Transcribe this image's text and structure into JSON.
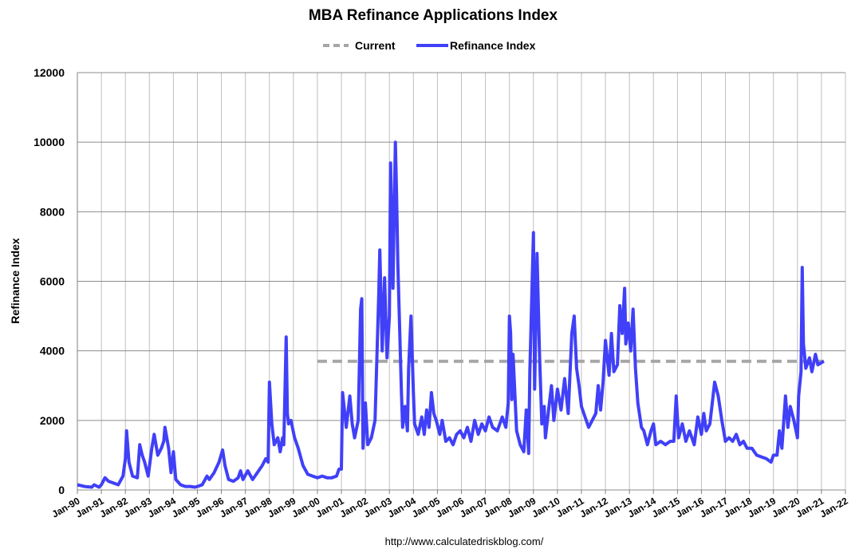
{
  "chart_data": {
    "type": "line",
    "title": "MBA Refinance Applications Index",
    "xlabel": "",
    "ylabel": "Refinance Index",
    "source": "http://www.calculatedriskblog.com/",
    "ylim": [
      0,
      12000
    ],
    "xlim": [
      1990,
      2022
    ],
    "grid": true,
    "legend_position": "top-center",
    "y_ticks": [
      0,
      2000,
      4000,
      6000,
      8000,
      10000,
      12000
    ],
    "x_ticks": [
      "Jan-90",
      "Jan-91",
      "Jan-92",
      "Jan-93",
      "Jan-94",
      "Jan-95",
      "Jan-96",
      "Jan-97",
      "Jan-98",
      "Jan-99",
      "Jan-00",
      "Jan-01",
      "Jan-02",
      "Jan-03",
      "Jan-04",
      "Jan-05",
      "Jan-06",
      "Jan-07",
      "Jan-08",
      "Jan-09",
      "Jan-10",
      "Jan-11",
      "Jan-12",
      "Jan-13",
      "Jan-14",
      "Jan-15",
      "Jan-16",
      "Jan-17",
      "Jan-18",
      "Jan-19",
      "Jan-20",
      "Jan-21",
      "Jan-22"
    ],
    "colors": {
      "refinance": "#4040f8",
      "current": "#a6a6a6"
    },
    "series": [
      {
        "name": "Current",
        "style": "dashed",
        "x": [
          2000.0,
          2021.1
        ],
        "y": [
          3700,
          3700
        ]
      },
      {
        "name": "Refinance Index",
        "style": "solid",
        "x": [
          1990.0,
          1990.3,
          1990.6,
          1990.7,
          1990.9,
          1991.0,
          1991.15,
          1991.3,
          1991.5,
          1991.7,
          1991.9,
          1992.0,
          1992.05,
          1992.15,
          1992.3,
          1992.5,
          1992.6,
          1992.7,
          1992.8,
          1992.95,
          1993.1,
          1993.2,
          1993.35,
          1993.5,
          1993.6,
          1993.65,
          1993.8,
          1993.9,
          1994.0,
          1994.1,
          1994.3,
          1994.5,
          1994.7,
          1994.9,
          1995.0,
          1995.2,
          1995.4,
          1995.5,
          1995.7,
          1995.9,
          1996.05,
          1996.15,
          1996.3,
          1996.5,
          1996.7,
          1996.8,
          1996.9,
          1997.1,
          1997.3,
          1997.5,
          1997.7,
          1997.85,
          1997.95,
          1998.0,
          1998.1,
          1998.2,
          1998.35,
          1998.45,
          1998.55,
          1998.6,
          1998.7,
          1998.75,
          1998.8,
          1998.9,
          1999.05,
          1999.2,
          1999.4,
          1999.6,
          1999.8,
          2000.0,
          2000.2,
          2000.4,
          2000.6,
          2000.8,
          2000.9,
          2001.0,
          2001.05,
          2001.2,
          2001.35,
          2001.45,
          2001.55,
          2001.7,
          2001.8,
          2001.85,
          2001.9,
          2002.0,
          2002.1,
          2002.25,
          2002.4,
          2002.55,
          2002.6,
          2002.7,
          2002.8,
          2002.9,
          2003.0,
          2003.05,
          2003.15,
          2003.2,
          2003.25,
          2003.3,
          2003.35,
          2003.5,
          2003.55,
          2003.65,
          2003.75,
          2003.8,
          2003.9,
          2004.0,
          2004.05,
          2004.2,
          2004.35,
          2004.45,
          2004.55,
          2004.65,
          2004.75,
          2004.85,
          2004.95,
          2005.1,
          2005.2,
          2005.35,
          2005.5,
          2005.65,
          2005.8,
          2005.95,
          2006.1,
          2006.25,
          2006.4,
          2006.55,
          2006.7,
          2006.85,
          2007.0,
          2007.15,
          2007.3,
          2007.5,
          2007.7,
          2007.85,
          2007.95,
          2008.0,
          2008.05,
          2008.1,
          2008.15,
          2008.3,
          2008.45,
          2008.6,
          2008.7,
          2008.8,
          2008.85,
          2009.0,
          2009.05,
          2009.15,
          2009.25,
          2009.35,
          2009.45,
          2009.5,
          2009.65,
          2009.75,
          2009.85,
          2010.0,
          2010.15,
          2010.3,
          2010.45,
          2010.6,
          2010.7,
          2010.8,
          2010.9,
          2011.0,
          2011.15,
          2011.3,
          2011.45,
          2011.6,
          2011.7,
          2011.8,
          2011.9,
          2012.0,
          2012.15,
          2012.25,
          2012.35,
          2012.5,
          2012.6,
          2012.7,
          2012.8,
          2012.85,
          2012.95,
          2013.05,
          2013.15,
          2013.25,
          2013.35,
          2013.5,
          2013.6,
          2013.75,
          2013.9,
          2014.0,
          2014.1,
          2014.3,
          2014.5,
          2014.7,
          2014.85,
          2014.95,
          2015.05,
          2015.2,
          2015.35,
          2015.5,
          2015.7,
          2015.85,
          2016.0,
          2016.1,
          2016.2,
          2016.35,
          2016.55,
          2016.7,
          2016.85,
          2017.0,
          2017.15,
          2017.3,
          2017.45,
          2017.6,
          2017.75,
          2017.9,
          2018.1,
          2018.3,
          2018.5,
          2018.7,
          2018.9,
          2019.0,
          2019.15,
          2019.25,
          2019.35,
          2019.5,
          2019.6,
          2019.7,
          2019.85,
          2020.0,
          2020.05,
          2020.15,
          2020.2,
          2020.25,
          2020.35,
          2020.5,
          2020.6,
          2020.75,
          2020.85,
          2021.1
        ],
        "y": [
          150,
          100,
          80,
          150,
          80,
          150,
          350,
          250,
          200,
          150,
          400,
          900,
          1700,
          800,
          400,
          350,
          1300,
          1000,
          800,
          400,
          1200,
          1600,
          1000,
          1200,
          1400,
          1800,
          1200,
          500,
          1100,
          300,
          150,
          100,
          100,
          80,
          100,
          150,
          400,
          300,
          500,
          800,
          1150,
          700,
          300,
          250,
          350,
          550,
          300,
          550,
          300,
          500,
          700,
          900,
          800,
          3100,
          1900,
          1300,
          1500,
          1100,
          1500,
          1300,
          4400,
          2200,
          1900,
          2000,
          1500,
          1200,
          700,
          450,
          400,
          350,
          400,
          350,
          350,
          400,
          600,
          600,
          2800,
          1800,
          2700,
          1900,
          1500,
          2000,
          5200,
          5500,
          1200,
          2500,
          1300,
          1500,
          2000,
          5500,
          6900,
          4000,
          6100,
          3800,
          5000,
          9400,
          5800,
          8000,
          10000,
          8500,
          6500,
          2800,
          1800,
          2400,
          1700,
          3500,
          5000,
          2800,
          1900,
          1600,
          2100,
          1600,
          2300,
          1800,
          2800,
          2200,
          2000,
          1600,
          2000,
          1400,
          1500,
          1300,
          1600,
          1700,
          1500,
          1800,
          1400,
          2000,
          1600,
          1900,
          1700,
          2100,
          1800,
          1700,
          2100,
          1800,
          2500,
          5000,
          4500,
          2600,
          3900,
          1700,
          1300,
          1100,
          2300,
          1050,
          3400,
          7400,
          2900,
          6800,
          4000,
          1900,
          2400,
          1500,
          2400,
          3000,
          2000,
          2900,
          2300,
          3200,
          2200,
          4500,
          5000,
          3500,
          3000,
          2400,
          2100,
          1800,
          2000,
          2200,
          3000,
          2300,
          3100,
          4300,
          3300,
          4500,
          3400,
          3600,
          5300,
          4500,
          5800,
          4200,
          4800,
          4000,
          5200,
          3500,
          2500,
          1800,
          1700,
          1300,
          1700,
          1900,
          1300,
          1400,
          1300,
          1400,
          1400,
          2700,
          1500,
          1900,
          1400,
          1700,
          1300,
          2100,
          1600,
          2200,
          1700,
          1900,
          3100,
          2700,
          2000,
          1400,
          1500,
          1400,
          1600,
          1300,
          1400,
          1200,
          1200,
          1000,
          950,
          900,
          800,
          1000,
          1000,
          1700,
          1200,
          2700,
          1800,
          2400,
          2000,
          1500,
          2700,
          3400,
          6400,
          4200,
          3500,
          3800,
          3400,
          3900,
          3600,
          3700
        ]
      }
    ]
  }
}
